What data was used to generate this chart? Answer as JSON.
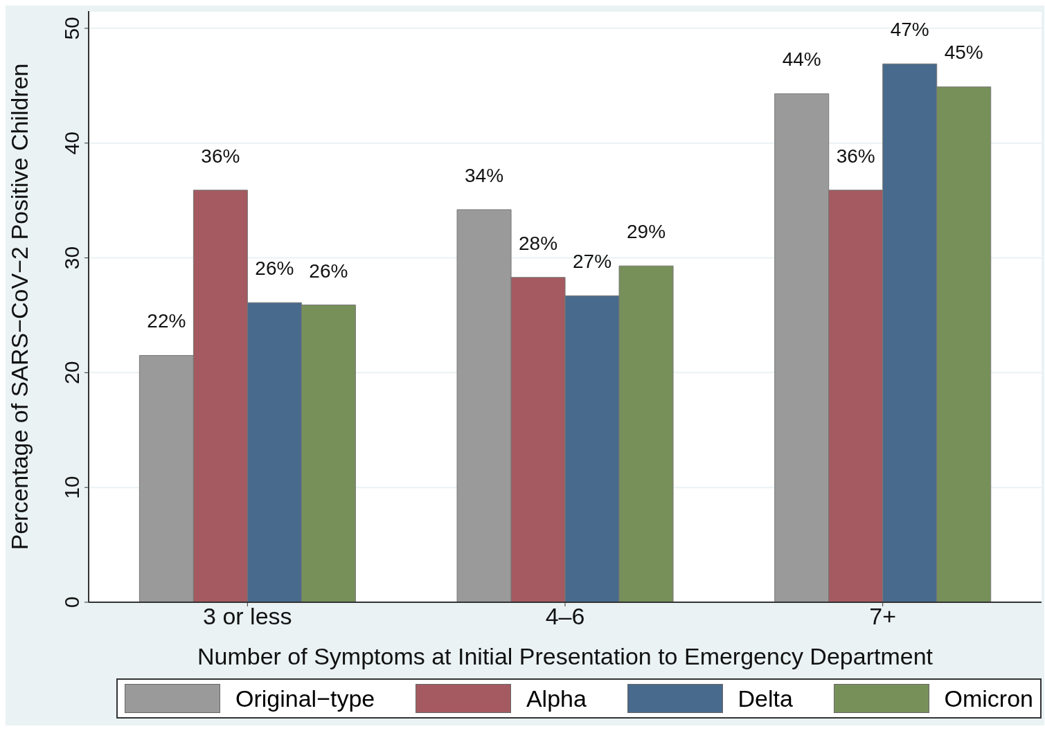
{
  "chart_data": {
    "type": "bar",
    "xlabel": "Number of Symptoms at Initial Presentation to Emergency Department",
    "ylabel": "Percentage of SARS−CoV−2 Positive Children",
    "categories": [
      "3 or less",
      "4–6",
      "7+"
    ],
    "series": [
      {
        "name": "Original−type",
        "color": "#9a9a9a",
        "values": [
          21.5,
          34.2,
          44.3
        ],
        "value_labels": [
          "22%",
          "34%",
          "44%"
        ]
      },
      {
        "name": "Alpha",
        "color": "#a45a60",
        "values": [
          35.9,
          28.3,
          35.9
        ],
        "value_labels": [
          "36%",
          "28%",
          "36%"
        ]
      },
      {
        "name": "Delta",
        "color": "#486a8c",
        "values": [
          26.1,
          26.7,
          46.9
        ],
        "value_labels": [
          "26%",
          "27%",
          "47%"
        ]
      },
      {
        "name": "Omicron",
        "color": "#77905a",
        "values": [
          25.9,
          29.3,
          44.9
        ],
        "value_labels": [
          "26%",
          "29%",
          "45%"
        ]
      }
    ],
    "ylim": [
      0,
      51.5
    ],
    "yticks": [
      0,
      10,
      20,
      30,
      40,
      50
    ],
    "grid": "y",
    "legend": "bottom"
  }
}
